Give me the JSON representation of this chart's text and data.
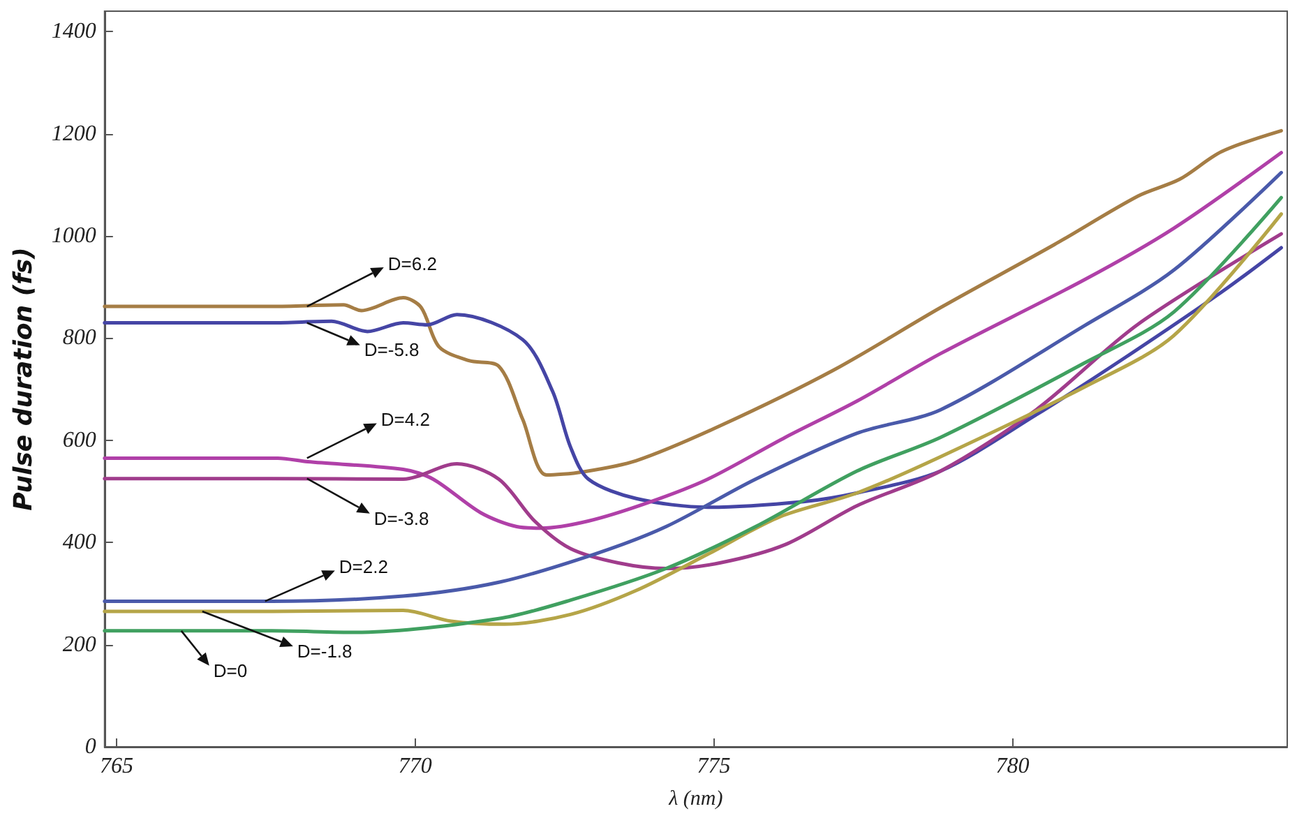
{
  "chart_data": {
    "type": "line",
    "xlabel": "λ (nm)",
    "ylabel": "Pulse duration (fs)",
    "xlim": [
      764.8,
      784.6
    ],
    "xticks": [
      765,
      770,
      775,
      780
    ],
    "ylim": [
      0,
      1440
    ],
    "yticks": [
      0,
      200,
      400,
      600,
      800,
      1000,
      1200,
      1400
    ],
    "grid": false,
    "legend": false,
    "marker": "none",
    "line_style": "solid",
    "series": [
      {
        "name": "D=6.2",
        "color": "#a57d45",
        "x": [
          764.8,
          767.6,
          768.8,
          769.1,
          769.8,
          770.1,
          770.4,
          770.9,
          771.4,
          771.8,
          772.2,
          772.8,
          773.7,
          775.1,
          777.0,
          778.8,
          780.7,
          782.1,
          782.8,
          783.5,
          784.5
        ],
        "values": [
          862,
          862,
          865,
          854,
          879,
          860,
          783,
          756,
          745,
          641,
          532,
          538,
          560,
          628,
          737,
          860,
          983,
          1078,
          1111,
          1165,
          1206
        ]
      },
      {
        "name": "D=-5.8",
        "color": "#4545a5",
        "x": [
          764.8,
          767.6,
          768.6,
          769.2,
          769.8,
          770.2,
          770.7,
          771.8,
          772.3,
          772.6,
          772.9,
          773.7,
          774.9,
          776.5,
          777.4,
          778.8,
          780.4,
          781.9,
          783.5,
          784.5
        ],
        "values": [
          830,
          830,
          833,
          813,
          830,
          826,
          846,
          797,
          696,
          587,
          524,
          486,
          469,
          480,
          497,
          540,
          650,
          763,
          890,
          977
        ]
      },
      {
        "name": "D=4.2",
        "color": "#b040a8",
        "x": [
          764.8,
          767.7,
          768.2,
          769.8,
          770.3,
          771.1,
          771.7,
          772.1,
          772.9,
          773.9,
          774.9,
          776.2,
          777.4,
          778.8,
          781.2,
          782.7,
          784.5
        ],
        "values": [
          565,
          565,
          558,
          543,
          524,
          458,
          431,
          428,
          442,
          478,
          524,
          606,
          677,
          770,
          914,
          1015,
          1163
        ]
      },
      {
        "name": "D=-3.8",
        "color": "#a03c8c",
        "x": [
          764.8,
          767.6,
          769.8,
          770.7,
          771.4,
          772.0,
          772.6,
          773.4,
          774.2,
          775.1,
          776.2,
          777.4,
          778.8,
          780.4,
          782.1,
          784.5
        ],
        "values": [
          525,
          525,
          524,
          554,
          524,
          442,
          388,
          360,
          349,
          360,
          396,
          472,
          540,
          660,
          827,
          1004
        ]
      },
      {
        "name": "D=2.2",
        "color": "#4a5aaa",
        "x": [
          764.8,
          767.6,
          769.8,
          771.4,
          773.0,
          774.2,
          775.7,
          777.4,
          778.8,
          781.2,
          782.7,
          784.5
        ],
        "values": [
          285,
          285,
          295,
          322,
          377,
          431,
          524,
          614,
          660,
          824,
          933,
          1124
        ]
      },
      {
        "name": "D=-1.8",
        "color": "#b5a548",
        "x": [
          764.8,
          767.6,
          769.8,
          770.6,
          771.5,
          772.6,
          773.7,
          774.9,
          776.1,
          777.4,
          778.8,
          781.2,
          782.7,
          784.5
        ],
        "values": [
          265,
          265,
          267,
          246,
          240,
          259,
          306,
          377,
          450,
          497,
          568,
          704,
          805,
          1043
        ]
      },
      {
        "name": "D=0",
        "color": "#40a060",
        "x": [
          764.8,
          767.6,
          769.0,
          771.4,
          772.6,
          774.2,
          775.7,
          777.4,
          778.8,
          781.2,
          782.7,
          784.5
        ],
        "values": [
          227,
          227,
          224,
          251,
          287,
          349,
          431,
          540,
          606,
          751,
          851,
          1075
        ]
      }
    ]
  }
}
